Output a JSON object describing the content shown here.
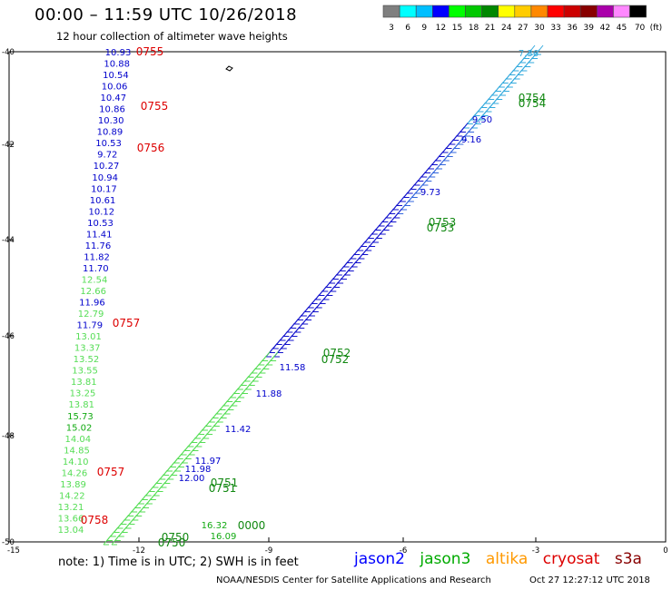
{
  "header": {
    "title": "00:00 – 11:59 UTC 10/26/2018",
    "subtitle": "12 hour collection of altimeter wave heights"
  },
  "color_scale": {
    "values": [
      "3",
      "6",
      "9",
      "12",
      "15",
      "18",
      "21",
      "24",
      "27",
      "30",
      "33",
      "36",
      "39",
      "42",
      "45",
      "70"
    ],
    "unit": "(ft)",
    "colors": [
      "#7f7f7f",
      "#00ffff",
      "#00bfff",
      "#0000ff",
      "#00ff00",
      "#00c800",
      "#008800",
      "#ffff00",
      "#ffcc00",
      "#ff8800",
      "#ff0000",
      "#cc0000",
      "#880000",
      "#aa00aa",
      "#ff88ff",
      "#000000"
    ]
  },
  "map": {
    "lat_labels": [
      "-40",
      "-42",
      "-44",
      "-46",
      "-48",
      "-50"
    ],
    "lon_labels": [
      "-15",
      "-12",
      "-9",
      "-6",
      "-3",
      "0"
    ]
  },
  "times": [
    {
      "text": "0755",
      "color": "#dd0000"
    },
    {
      "text": "0755",
      "color": "#dd0000"
    },
    {
      "text": "0756",
      "color": "#dd0000"
    },
    {
      "text": "0757",
      "color": "#dd0000"
    },
    {
      "text": "0757",
      "color": "#dd0000"
    },
    {
      "text": "0758",
      "color": "#dd0000"
    },
    {
      "text": "0754",
      "color": "#118811"
    },
    {
      "text": "0754",
      "color": "#118811"
    },
    {
      "text": "0753",
      "color": "#118811"
    },
    {
      "text": "0753",
      "color": "#118811"
    },
    {
      "text": "0752",
      "color": "#118811"
    },
    {
      "text": "0752",
      "color": "#118811"
    },
    {
      "text": "0751",
      "color": "#118811"
    },
    {
      "text": "0751",
      "color": "#118811"
    },
    {
      "text": "0750",
      "color": "#118811"
    },
    {
      "text": "0750",
      "color": "#118811"
    },
    {
      "text": "0000",
      "color": "#118811"
    }
  ],
  "track_west": [
    {
      "v": "10.93",
      "c": "#0000cc"
    },
    {
      "v": "10.88",
      "c": "#0000cc"
    },
    {
      "v": "10.54",
      "c": "#0000cc"
    },
    {
      "v": "10.06",
      "c": "#0000cc"
    },
    {
      "v": "10.47",
      "c": "#0000cc"
    },
    {
      "v": "10.86",
      "c": "#0000cc"
    },
    {
      "v": "10.30",
      "c": "#0000cc"
    },
    {
      "v": "10.89",
      "c": "#0000cc"
    },
    {
      "v": "10.53",
      "c": "#0000cc"
    },
    {
      "v": "9.72",
      "c": "#0000cc"
    },
    {
      "v": "10.27",
      "c": "#0000cc"
    },
    {
      "v": "10.94",
      "c": "#0000cc"
    },
    {
      "v": "10.17",
      "c": "#0000cc"
    },
    {
      "v": "10.61",
      "c": "#0000cc"
    },
    {
      "v": "10.12",
      "c": "#0000cc"
    },
    {
      "v": "10.53",
      "c": "#0000cc"
    },
    {
      "v": "11.41",
      "c": "#0000cc"
    },
    {
      "v": "11.76",
      "c": "#0000cc"
    },
    {
      "v": "11.82",
      "c": "#0000cc"
    },
    {
      "v": "11.70",
      "c": "#0000cc"
    },
    {
      "v": "12.54",
      "c": "#55dd55"
    },
    {
      "v": "12.66",
      "c": "#55dd55"
    },
    {
      "v": "11.96",
      "c": "#0000cc"
    },
    {
      "v": "12.79",
      "c": "#55dd55"
    },
    {
      "v": "11.79",
      "c": "#0000cc"
    },
    {
      "v": "13.01",
      "c": "#55dd55"
    },
    {
      "v": "13.37",
      "c": "#55dd55"
    },
    {
      "v": "13.52",
      "c": "#55dd55"
    },
    {
      "v": "13.55",
      "c": "#55dd55"
    },
    {
      "v": "13.81",
      "c": "#55dd55"
    },
    {
      "v": "13.25",
      "c": "#55dd55"
    },
    {
      "v": "13.81",
      "c": "#55dd55"
    },
    {
      "v": "15.73",
      "c": "#11aa11"
    },
    {
      "v": "15.02",
      "c": "#11aa11"
    },
    {
      "v": "14.04",
      "c": "#55dd55"
    },
    {
      "v": "14.85",
      "c": "#55dd55"
    },
    {
      "v": "14.10",
      "c": "#55dd55"
    },
    {
      "v": "14.26",
      "c": "#55dd55"
    },
    {
      "v": "13.89",
      "c": "#55dd55"
    },
    {
      "v": "14.22",
      "c": "#55dd55"
    },
    {
      "v": "13.21",
      "c": "#55dd55"
    },
    {
      "v": "13.66",
      "c": "#55dd55"
    },
    {
      "v": "13.04",
      "c": "#55dd55"
    }
  ],
  "track_labels": [
    {
      "v": "7.36",
      "c": "#33aadd"
    },
    {
      "v": "9.50",
      "c": "#0000cc"
    },
    {
      "v": "9.16",
      "c": "#0000cc"
    },
    {
      "v": "9.73",
      "c": "#0000cc"
    },
    {
      "v": "11.58",
      "c": "#0000cc"
    },
    {
      "v": "11.88",
      "c": "#0000cc"
    },
    {
      "v": "11.42",
      "c": "#0000cc"
    },
    {
      "v": "11.97",
      "c": "#0000cc"
    },
    {
      "v": "11.98",
      "c": "#0000cc"
    },
    {
      "v": "12.00",
      "c": "#0000cc"
    },
    {
      "v": "16.32",
      "c": "#11aa11"
    },
    {
      "v": "16.09",
      "c": "#11aa11"
    }
  ],
  "footer": {
    "note": "note:  1) Time is in UTC;  2) SWH is in feet",
    "credit": "NOAA/NESDIS Center for Satellite Applications and Research",
    "timestamp": "Oct 27 12:27:12 UTC 2018"
  },
  "legend": [
    {
      "name": "jason2",
      "color": "#0000ff"
    },
    {
      "name": "jason3",
      "color": "#00aa00"
    },
    {
      "name": "altika",
      "color": "#ff9900"
    },
    {
      "name": "cryosat",
      "color": "#dd0000"
    },
    {
      "name": "s3a",
      "color": "#880000"
    }
  ]
}
